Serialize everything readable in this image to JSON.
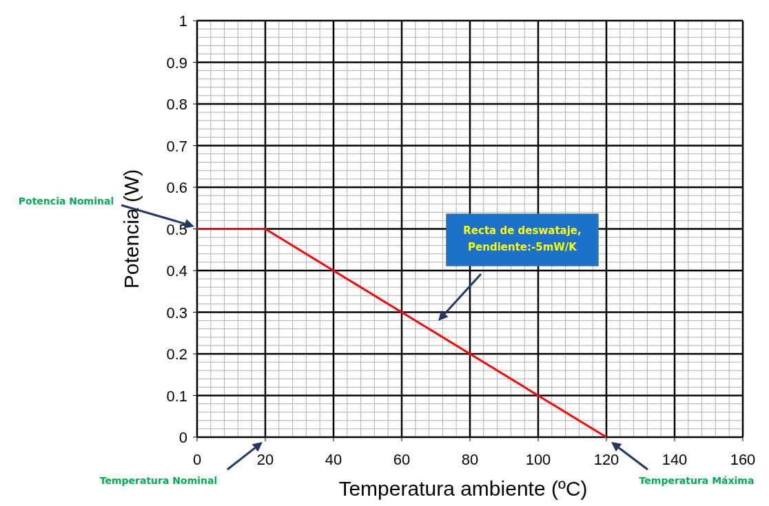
{
  "chart_data": {
    "type": "line",
    "xlabel": "Temperatura ambiente (ºC)",
    "ylabel": "Potencia (W)",
    "x": [
      0,
      20,
      120
    ],
    "series": [
      {
        "color": "#ff0000",
        "values": [
          0.5,
          0.5,
          0
        ]
      }
    ],
    "xlim": [
      0,
      160
    ],
    "xticks": [
      0,
      20,
      40,
      60,
      80,
      100,
      120,
      140,
      160
    ],
    "ylim": [
      0,
      1
    ],
    "yticks": [
      0,
      0.1,
      0.2,
      0.3,
      0.4,
      0.5,
      0.6,
      0.7,
      0.8,
      0.9,
      1
    ],
    "grid": true,
    "marker": "none",
    "line_style": "solid",
    "annotations": [
      "Potencia Nominal",
      "Temperatura Nominal",
      "Temperatura Máxima",
      "Recta de deswataje, Pendiente:-5mW/K"
    ]
  }
}
